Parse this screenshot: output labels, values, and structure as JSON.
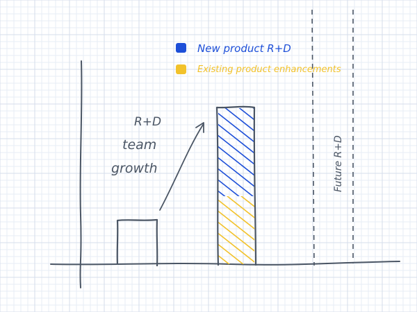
{
  "legend": [
    {
      "label": "New product R+D",
      "color": "#1d4fd8"
    },
    {
      "label": "Existing product enhancements",
      "color": "#f2c22b"
    }
  ],
  "annotation": {
    "lines": [
      "R+D",
      "team",
      "growth"
    ]
  },
  "future_label": "Future R+D",
  "colors": {
    "ink": "#4a5564",
    "grid_minor": "#e7ecf5",
    "grid_major": "#d6deeb",
    "new_product": "#1d4fd8",
    "existing": "#f2c22b"
  },
  "bars": {
    "before": {
      "fill": "none"
    },
    "after": {
      "existing_share": 0.375,
      "new_product_share": 0.625
    }
  }
}
